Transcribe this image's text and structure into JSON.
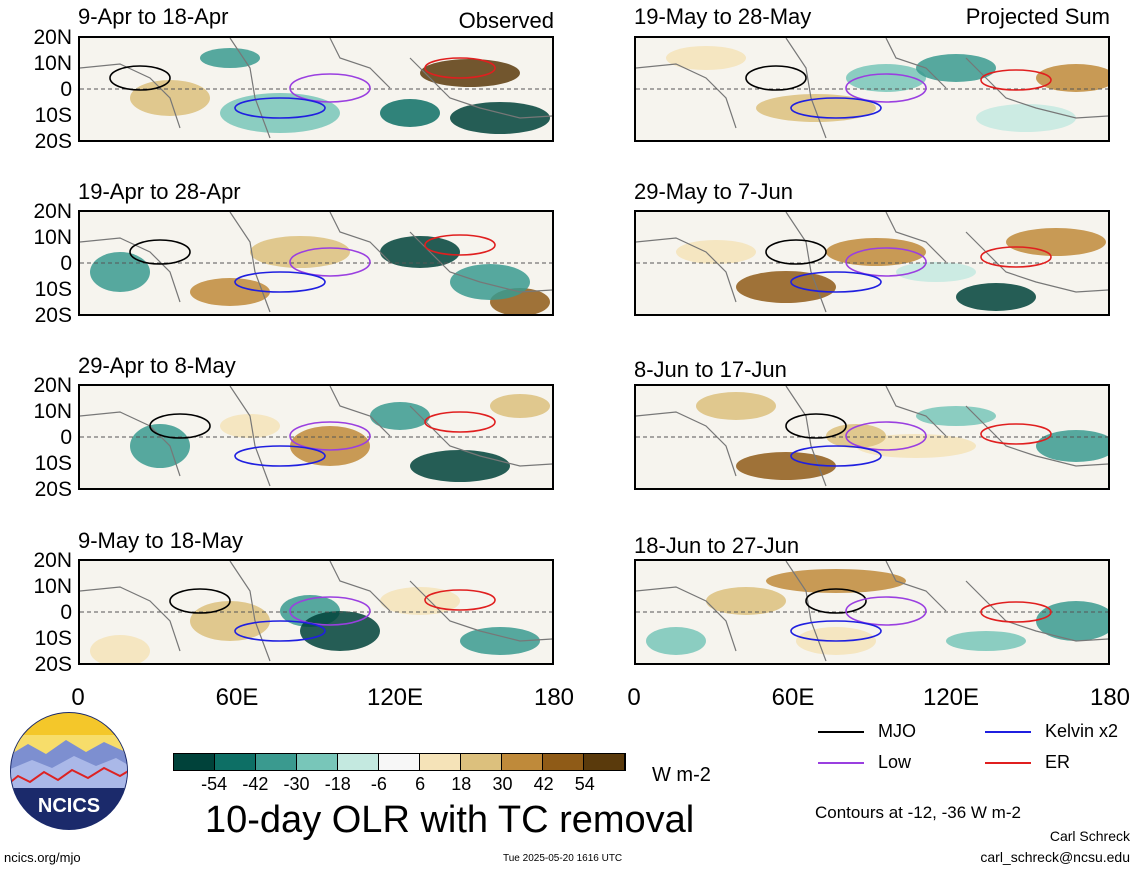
{
  "figure": {
    "title": "10-day OLR with TC removal",
    "units": "W m-2",
    "contour_note": "Contours at -12, -36 W m-2",
    "author": "Carl Schreck",
    "email": "carl_schreck@ncsu.edu",
    "website": "ncics.org/mjo",
    "timestamp": "Tue 2025-05-20 1616 UTC",
    "logo_text": "NCICS"
  },
  "columns": {
    "left_label": "Observed",
    "right_label": "Projected Sum"
  },
  "panels_left": [
    {
      "title": "9-Apr to 18-Apr"
    },
    {
      "title": "19-Apr to 28-Apr"
    },
    {
      "title": "29-Apr to 8-May"
    },
    {
      "title": "9-May to 18-May"
    }
  ],
  "panels_right": [
    {
      "title": "19-May to 28-May"
    },
    {
      "title": "29-May to 7-Jun"
    },
    {
      "title": "8-Jun to 17-Jun"
    },
    {
      "title": "18-Jun to 27-Jun"
    }
  ],
  "lat_labels": [
    "20N",
    "10N",
    "0",
    "10S",
    "20S"
  ],
  "lon_labels": [
    "0",
    "60E",
    "120E",
    "180"
  ],
  "colorbar": {
    "ticks": [
      "-54",
      "-42",
      "-30",
      "-18",
      "-6",
      "6",
      "18",
      "30",
      "42",
      "54"
    ],
    "colors": [
      "#00423a",
      "#0d6f65",
      "#3a9a8f",
      "#78c6b9",
      "#c4e9e0",
      "#f7f7f7",
      "#f5e3b8",
      "#dcc07d",
      "#bf8a3a",
      "#8f5b17",
      "#5a3a0c"
    ]
  },
  "legend": [
    {
      "label": "MJO",
      "color": "#000000"
    },
    {
      "label": "Kelvin x2",
      "color": "#1f1fe0"
    },
    {
      "label": "Low",
      "color": "#9a3fe0"
    },
    {
      "label": "ER",
      "color": "#e01f1f"
    }
  ]
}
